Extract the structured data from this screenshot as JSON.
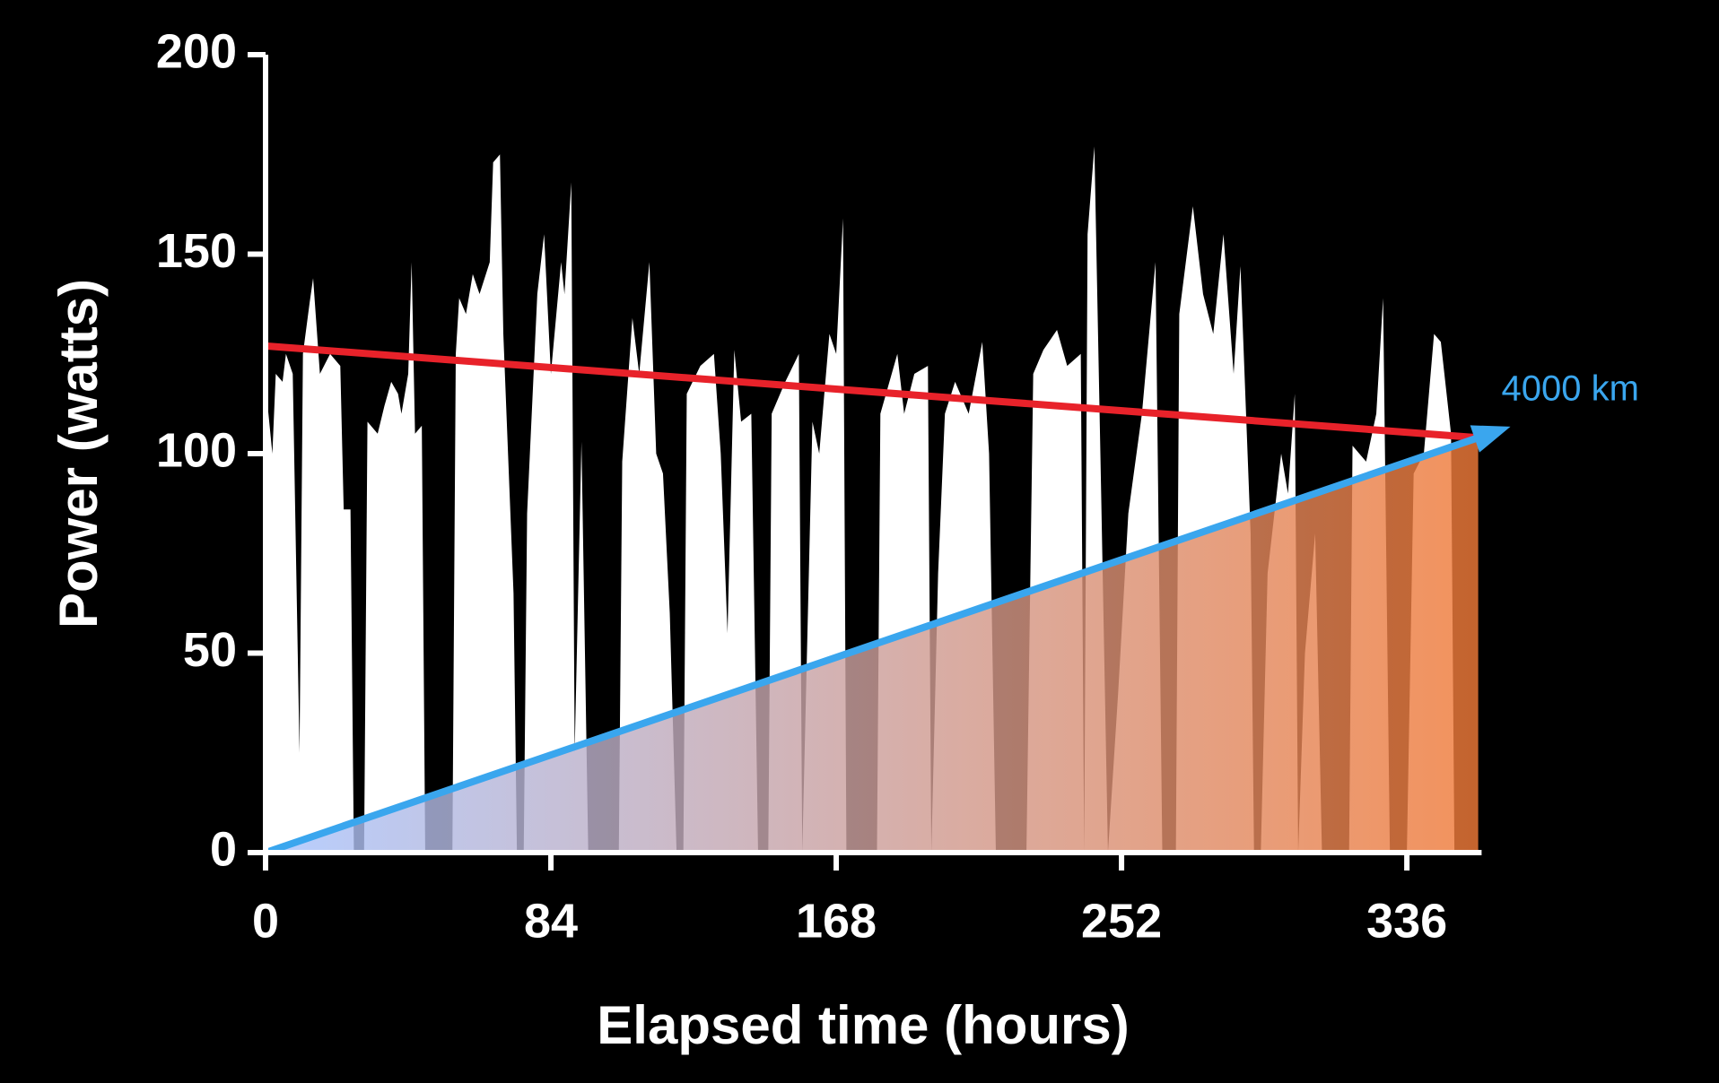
{
  "chart_data": {
    "type": "area",
    "xlabel": "Elapsed time (hours)",
    "ylabel": "Power (watts)",
    "xlim": [
      0,
      358
    ],
    "ylim": [
      0,
      200
    ],
    "xticks": [
      0,
      84,
      168,
      252,
      336
    ],
    "yticks": [
      0,
      50,
      100,
      150,
      200
    ],
    "grid": false,
    "area_gradient": [
      "#a8c4ff",
      "#f07a38"
    ],
    "series": [
      {
        "color": "#ffffff",
        "style": "area",
        "x": [
          0,
          0.5,
          2,
          3,
          5,
          6,
          8,
          10,
          11,
          13,
          14,
          16,
          19,
          22,
          23,
          25,
          26,
          29,
          30,
          33,
          35,
          37,
          39,
          40,
          42,
          43,
          44,
          46,
          47,
          55,
          56,
          57,
          59,
          61,
          63,
          66,
          67,
          69,
          70,
          73,
          74,
          76,
          77,
          80,
          82,
          84,
          87,
          88,
          90,
          91,
          93,
          95,
          104,
          105,
          108,
          110,
          113,
          115,
          117,
          119,
          121,
          123,
          124,
          128,
          132,
          134,
          136,
          138,
          140,
          143,
          145,
          148,
          149,
          153,
          157,
          158,
          161,
          163,
          166,
          168,
          170,
          171,
          174,
          180,
          181,
          186,
          188,
          191,
          195,
          196,
          198,
          200,
          203,
          207,
          211,
          213,
          215,
          224,
          226,
          229,
          233,
          236,
          240,
          241,
          242,
          244,
          246,
          248,
          251,
          254,
          258,
          262,
          264,
          268,
          269,
          273,
          276,
          279,
          282,
          285,
          287,
          290,
          291,
          293,
          295,
          299,
          301,
          303,
          304,
          306,
          309,
          311,
          319,
          320,
          324,
          327,
          329,
          331,
          336,
          338,
          341,
          344,
          346,
          349,
          350
        ],
        "values": [
          0,
          113,
          100,
          120,
          118,
          125,
          120,
          25,
          125,
          138,
          144,
          120,
          125,
          122,
          86,
          86,
          0,
          0,
          108,
          105,
          112,
          118,
          115,
          110,
          120,
          148,
          105,
          107,
          0,
          0,
          125,
          139,
          135,
          145,
          140,
          148,
          173,
          175,
          130,
          65,
          0,
          0,
          85,
          140,
          155,
          120,
          148,
          140,
          168,
          25,
          103,
          0,
          0,
          98,
          134,
          120,
          148,
          100,
          95,
          60,
          0,
          0,
          115,
          122,
          125,
          100,
          55,
          126,
          108,
          110,
          0,
          0,
          110,
          118,
          125,
          0,
          108,
          100,
          130,
          125,
          159,
          0,
          0,
          0,
          110,
          125,
          110,
          120,
          122,
          0,
          70,
          110,
          118,
          110,
          128,
          100,
          0,
          0,
          120,
          126,
          131,
          122,
          125,
          0,
          155,
          177,
          90,
          0,
          40,
          85,
          110,
          148,
          0,
          0,
          135,
          162,
          140,
          130,
          155,
          120,
          147,
          80,
          0,
          0,
          70,
          100,
          90,
          115,
          0,
          50,
          80,
          0,
          0,
          102,
          98,
          110,
          139,
          0,
          0,
          95,
          100,
          130,
          128,
          105,
          0
        ]
      },
      {
        "color": "#e8222a",
        "style": "line",
        "x": [
          0,
          357
        ],
        "values": [
          127,
          104
        ]
      },
      {
        "color": "#3aa6ee",
        "style": "arrow",
        "x": [
          0,
          357
        ],
        "values": [
          0,
          104
        ]
      }
    ],
    "annotation": "4000 km"
  }
}
